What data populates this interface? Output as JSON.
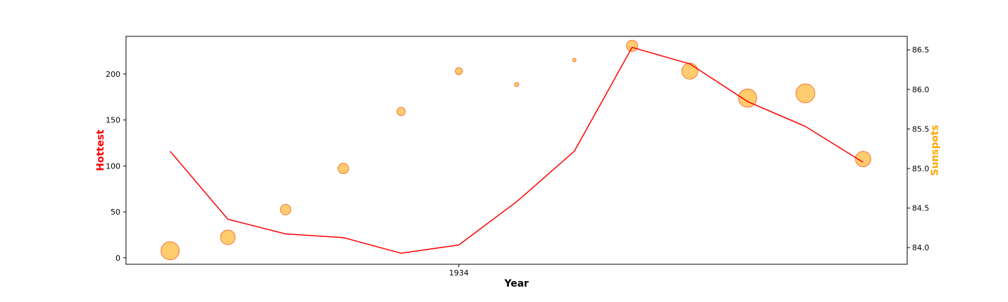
{
  "chart_data": {
    "type": "line+scatter",
    "xlabel": "Year",
    "x_tick_labels": [
      "1934"
    ],
    "x_tick_index": 5,
    "left_axis": {
      "label": "Hottest",
      "color": "#ff0000",
      "ylim": [
        -7,
        241
      ],
      "ticks": [
        "0",
        "50",
        "100",
        "150",
        "200"
      ]
    },
    "right_axis": {
      "label": "Sunspots",
      "color": "#ffa500",
      "ylim": [
        83.79,
        86.67
      ],
      "ticks": [
        "84.0",
        "84.5",
        "85.0",
        "85.5",
        "86.0",
        "86.5"
      ]
    },
    "line_series": {
      "axis": "left",
      "color": "#ff0000",
      "values": [
        116,
        42,
        26,
        22,
        5,
        14,
        61,
        116,
        229,
        211,
        170,
        143,
        104
      ]
    },
    "scatter_series": {
      "axis": "right",
      "fill": "#ffc966",
      "stroke": "#f4743b",
      "values": [
        83.96,
        84.13,
        84.48,
        85.0,
        85.72,
        86.23,
        86.06,
        86.37,
        86.55,
        86.23,
        85.89,
        85.95,
        85.12
      ],
      "sizes": [
        13,
        10.5,
        7.5,
        7.5,
        6,
        5,
        3,
        2.5,
        8,
        11.5,
        13,
        13.5,
        11
      ]
    }
  }
}
